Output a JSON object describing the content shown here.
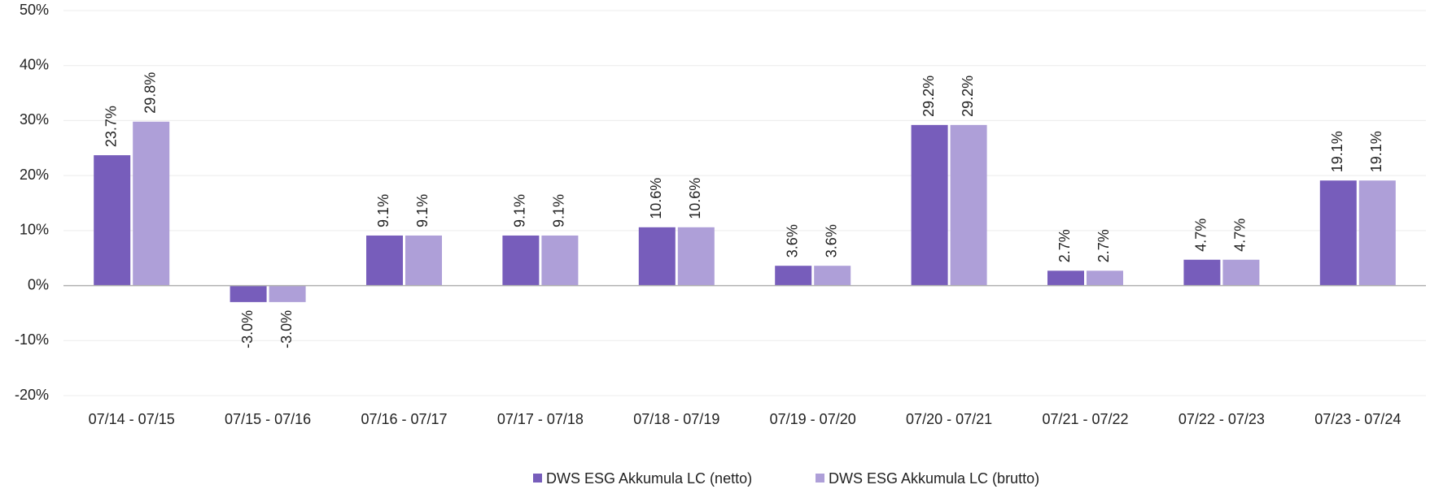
{
  "chart_data": {
    "type": "bar",
    "categories": [
      "07/14 - 07/15",
      "07/15 - 07/16",
      "07/16 - 07/17",
      "07/17 - 07/18",
      "07/18 - 07/19",
      "07/19 - 07/20",
      "07/20 - 07/21",
      "07/21 - 07/22",
      "07/22 - 07/23",
      "07/23 - 07/24"
    ],
    "series": [
      {
        "name": "DWS ESG Akkumula LC (netto)",
        "color": "#775dbb",
        "values": [
          23.7,
          -3.0,
          9.1,
          9.1,
          10.6,
          3.6,
          29.2,
          2.7,
          4.7,
          19.1
        ],
        "value_labels": [
          "23.7%",
          "-3.0%",
          "9.1%",
          "9.1%",
          "10.6%",
          "3.6%",
          "29.2%",
          "2.7%",
          "4.7%",
          "19.1%"
        ]
      },
      {
        "name": "DWS ESG Akkumula LC (brutto)",
        "color": "#ae9fd8",
        "values": [
          29.8,
          -3.0,
          9.1,
          9.1,
          10.6,
          3.6,
          29.2,
          2.7,
          4.7,
          19.1
        ],
        "value_labels": [
          "29.8%",
          "-3.0%",
          "9.1%",
          "9.1%",
          "10.6%",
          "3.6%",
          "29.2%",
          "2.7%",
          "4.7%",
          "19.1%"
        ]
      }
    ],
    "ylim": [
      -20,
      50
    ],
    "yticks": [
      {
        "value": -20,
        "label": "-20%"
      },
      {
        "value": -10,
        "label": "-10%"
      },
      {
        "value": 0,
        "label": "0%"
      },
      {
        "value": 10,
        "label": "10%"
      },
      {
        "value": 20,
        "label": "20%"
      },
      {
        "value": 30,
        "label": "30%"
      },
      {
        "value": 40,
        "label": "40%"
      },
      {
        "value": 50,
        "label": "50%"
      }
    ],
    "grid": true,
    "legend": "bottom"
  }
}
